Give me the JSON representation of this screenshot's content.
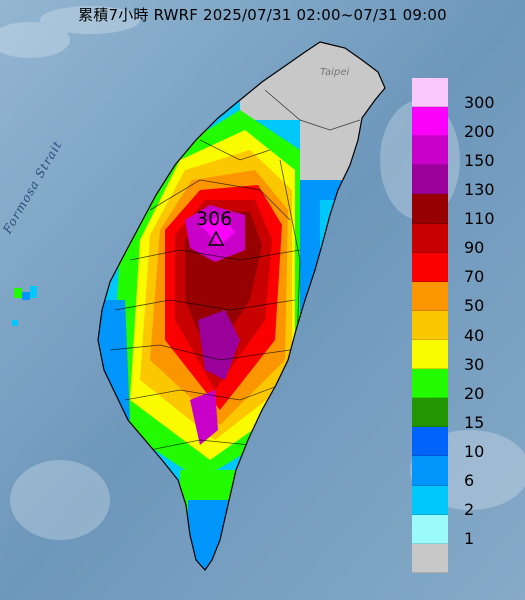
{
  "title": "累積7小時 RWRF 2025/07/31 02:00~07/31 09:00",
  "labels": {
    "strait": "Formosa Strait",
    "city": "Taipei",
    "peak_value": "306"
  },
  "legend": {
    "items": [
      {
        "label": "300",
        "color": "#fbc8fb"
      },
      {
        "label": "200",
        "color": "#fb00fb"
      },
      {
        "label": "150",
        "color": "#c800c8"
      },
      {
        "label": "130",
        "color": "#9b009b"
      },
      {
        "label": "110",
        "color": "#960000"
      },
      {
        "label": "90",
        "color": "#c80000"
      },
      {
        "label": "70",
        "color": "#fb0000"
      },
      {
        "label": "50",
        "color": "#fb9600"
      },
      {
        "label": "40",
        "color": "#fbc800"
      },
      {
        "label": "30",
        "color": "#fbfb00"
      },
      {
        "label": "20",
        "color": "#22fb00"
      },
      {
        "label": "15",
        "color": "#229600"
      },
      {
        "label": "10",
        "color": "#0064fb"
      },
      {
        "label": "6",
        "color": "#0096fb"
      },
      {
        "label": "2",
        "color": "#00c8fb"
      },
      {
        "label": "1",
        "color": "#9bfbfb"
      },
      {
        "label": "",
        "color": "#c8c8c8"
      }
    ]
  }
}
